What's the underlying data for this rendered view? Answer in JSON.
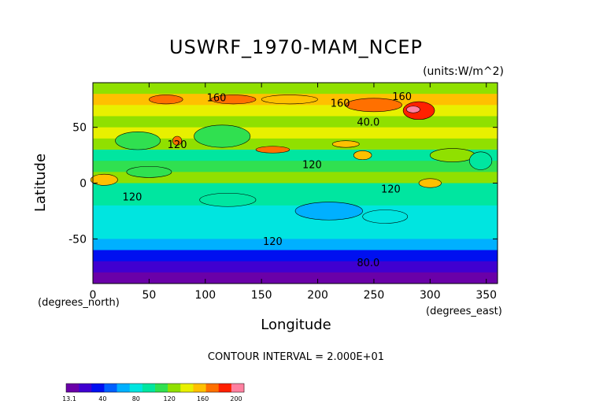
{
  "chart_data": {
    "type": "heatmap",
    "title": "USWRF_1970-MAM_NCEP",
    "units": "(units:W/m^2)",
    "xlabel": "Longitude",
    "ylabel": "Latitude",
    "x_units_label": "(degrees_north)",
    "x_units_label_right": "(degrees_east)",
    "xlim": [
      0,
      360
    ],
    "ylim": [
      -90,
      90
    ],
    "x_ticks": [
      "0",
      "50",
      "100",
      "150",
      "200",
      "250",
      "300",
      "350"
    ],
    "y_ticks": [
      "50",
      "0",
      "-50"
    ],
    "contour_interval_text": "CONTOUR INTERVAL = 2.000E+01",
    "contour_labels": [
      "160",
      "160",
      "160",
      "120",
      "120",
      "120",
      "120",
      "120",
      "80.0",
      "40.0"
    ],
    "colorbar": {
      "labels": [
        "13.1",
        "40",
        "80",
        "120",
        "160",
        "200"
      ],
      "colors": [
        "#6a00a8",
        "#4000d0",
        "#0010f0",
        "#0060ff",
        "#00b0ff",
        "#00e5e0",
        "#00e6a0",
        "#30e050",
        "#90e000",
        "#e8f000",
        "#ffc000",
        "#ff7000",
        "#ff2000",
        "#ff80a0"
      ]
    },
    "latitude_bands": [
      {
        "lat": 85,
        "value": 135
      },
      {
        "lat": 75,
        "value": 165
      },
      {
        "lat": 65,
        "value": 150
      },
      {
        "lat": 55,
        "value": 135
      },
      {
        "lat": 45,
        "value": 145
      },
      {
        "lat": 35,
        "value": 130
      },
      {
        "lat": 25,
        "value": 110
      },
      {
        "lat": 15,
        "value": 120
      },
      {
        "lat": 5,
        "value": 130
      },
      {
        "lat": -5,
        "value": 110
      },
      {
        "lat": -15,
        "value": 100
      },
      {
        "lat": -25,
        "value": 95
      },
      {
        "lat": -35,
        "value": 95
      },
      {
        "lat": -45,
        "value": 90
      },
      {
        "lat": -55,
        "value": 75
      },
      {
        "lat": -65,
        "value": 55
      },
      {
        "lat": -75,
        "value": 40
      },
      {
        "lat": -85,
        "value": 15
      }
    ]
  }
}
